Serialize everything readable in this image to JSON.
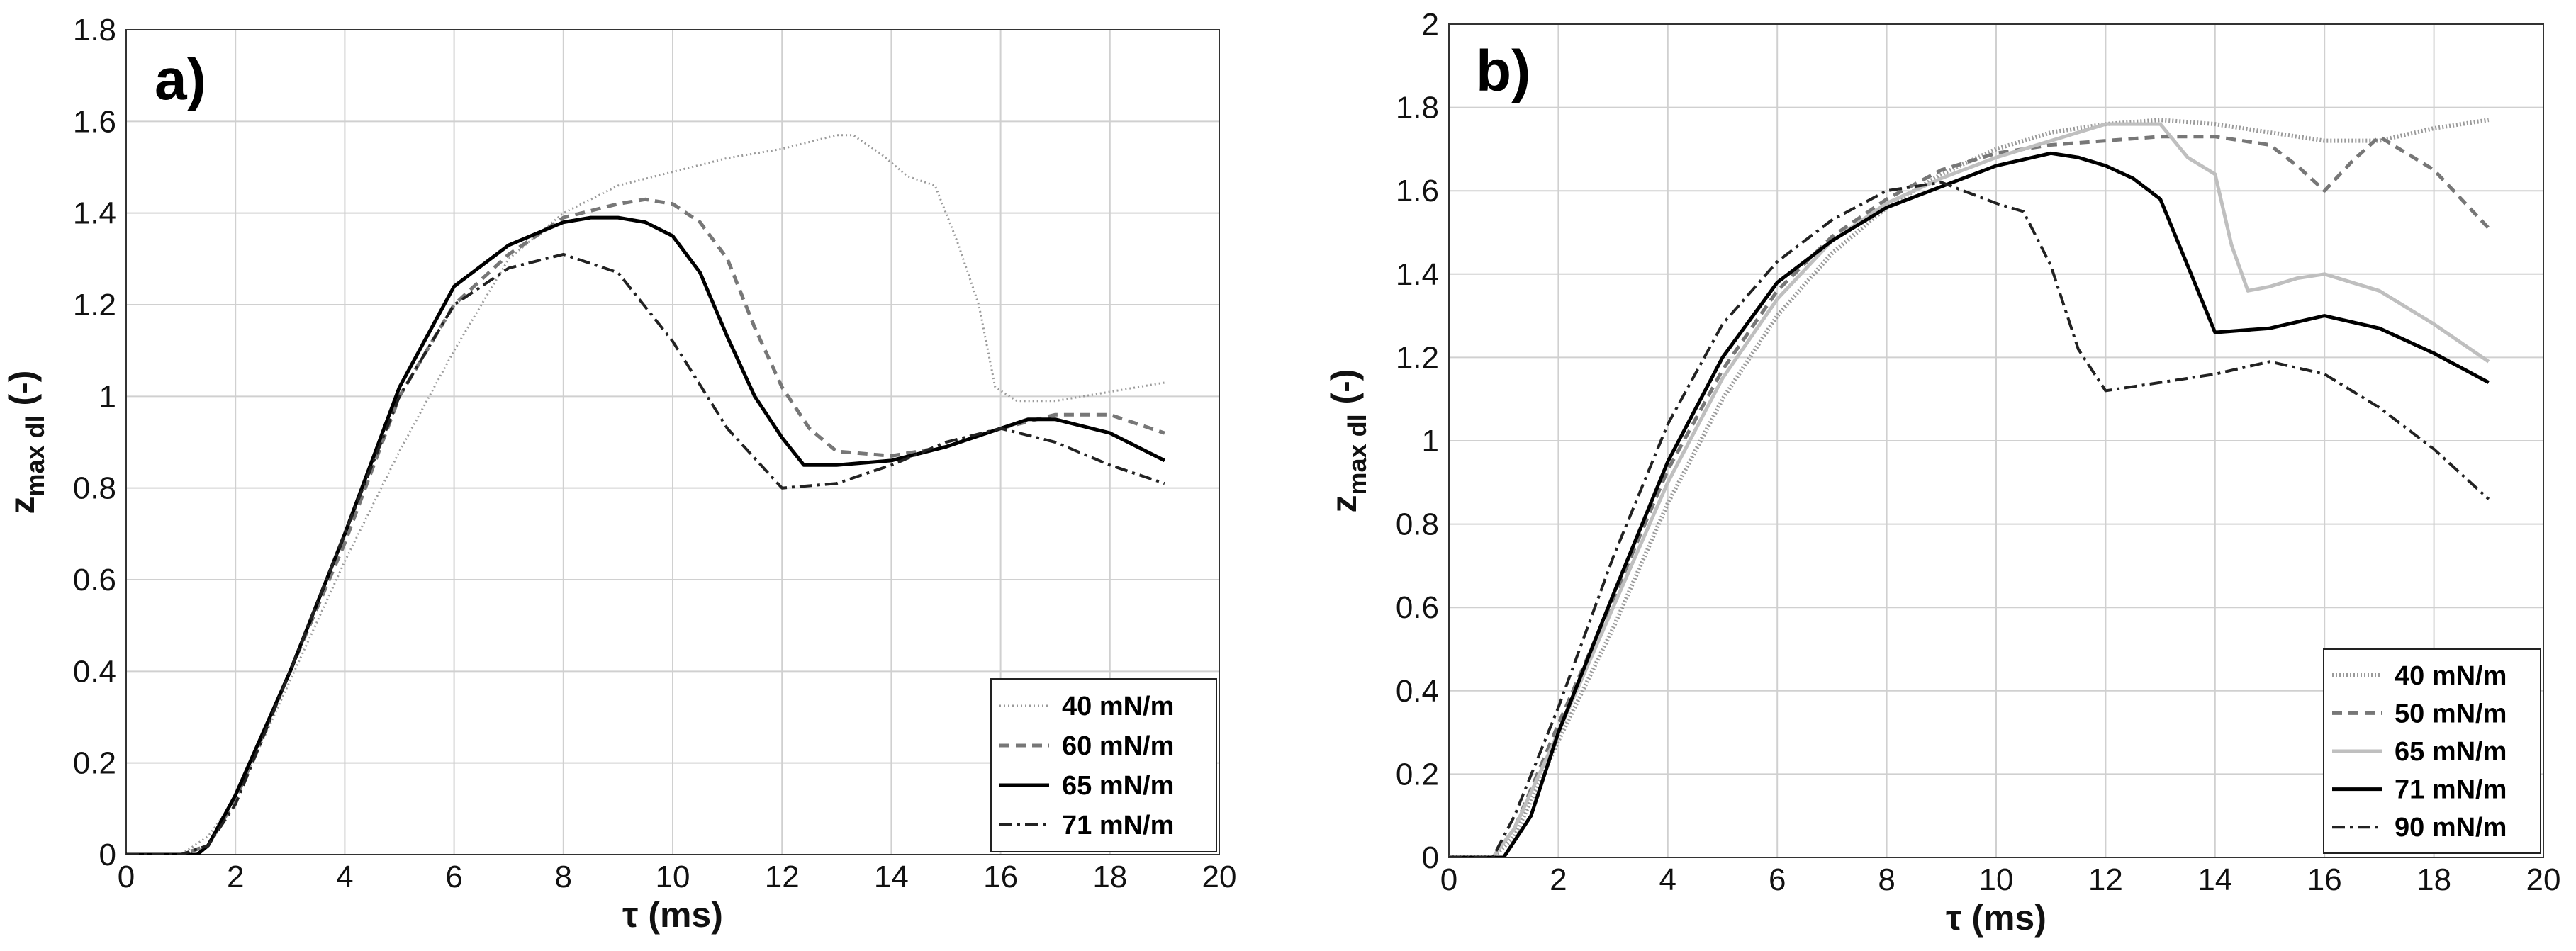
{
  "chart_data": [
    {
      "type": "line",
      "panel_label": "a)",
      "xlabel": "τ (ms)",
      "ylabel_main": "z",
      "ylabel_sub": "max dl",
      "ylabel_suffix": " (-)",
      "xlim": [
        0,
        20
      ],
      "ylim": [
        0,
        1.8
      ],
      "xticks": [
        0,
        2,
        4,
        6,
        8,
        10,
        12,
        14,
        16,
        18,
        20
      ],
      "xtick_labels": [
        "0",
        "2",
        "4",
        "6",
        "8",
        "10",
        "12",
        "14",
        "16",
        "18",
        "20"
      ],
      "yticks": [
        0,
        0.2,
        0.4,
        0.6,
        0.8,
        1.0,
        1.2,
        1.4,
        1.6,
        1.8
      ],
      "ytick_labels": [
        "0",
        "0.2",
        "0.4",
        "0.6",
        "0.8",
        "1",
        "1.2",
        "1.4",
        "1.6",
        "1.8"
      ],
      "grid": true,
      "legend_position": "bottom-right",
      "series": [
        {
          "name": "40 mN/m",
          "style": "dotted",
          "color": "#9a9a9a",
          "x": [
            0,
            0.5,
            1.0,
            1.5,
            2.0,
            3,
            4,
            5,
            6,
            7,
            8,
            9,
            10,
            11,
            12,
            13,
            13.3,
            13.8,
            14.3,
            14.8,
            15.2,
            15.6,
            15.9,
            16.3,
            17,
            18,
            19
          ],
          "y": [
            0,
            0,
            0,
            0.04,
            0.12,
            0.38,
            0.64,
            0.88,
            1.1,
            1.3,
            1.4,
            1.46,
            1.49,
            1.52,
            1.54,
            1.57,
            1.57,
            1.53,
            1.48,
            1.46,
            1.34,
            1.2,
            1.02,
            0.99,
            0.99,
            1.01,
            1.03
          ]
        },
        {
          "name": "60 mN/m",
          "style": "dashed",
          "color": "#777777",
          "x": [
            0,
            1.0,
            1.5,
            2.0,
            3,
            4,
            5,
            6,
            7,
            8,
            9,
            9.5,
            10,
            10.5,
            11,
            11.5,
            12,
            12.5,
            13,
            14,
            15,
            16,
            17,
            18,
            19
          ],
          "y": [
            0,
            0,
            0.02,
            0.12,
            0.4,
            0.68,
            1.0,
            1.2,
            1.31,
            1.39,
            1.42,
            1.43,
            1.42,
            1.38,
            1.3,
            1.15,
            1.02,
            0.93,
            0.88,
            0.87,
            0.89,
            0.93,
            0.96,
            0.96,
            0.92
          ]
        },
        {
          "name": "65 mN/m",
          "style": "solid",
          "color": "#000000",
          "x": [
            0,
            1.0,
            1.3,
            1.5,
            2.0,
            3,
            4,
            5,
            6,
            7,
            8,
            8.5,
            9,
            9.5,
            10,
            10.5,
            11,
            11.5,
            12,
            12.4,
            13,
            14,
            15,
            16,
            16.5,
            17,
            18,
            19
          ],
          "y": [
            0,
            0,
            0,
            0.02,
            0.13,
            0.4,
            0.7,
            1.02,
            1.24,
            1.33,
            1.38,
            1.39,
            1.39,
            1.38,
            1.35,
            1.27,
            1.13,
            1.0,
            0.91,
            0.85,
            0.85,
            0.86,
            0.89,
            0.93,
            0.95,
            0.95,
            0.92,
            0.86
          ]
        },
        {
          "name": "71 mN/m",
          "style": "dashdot",
          "color": "#222222",
          "x": [
            0,
            1.0,
            1.5,
            2.0,
            3,
            4,
            5,
            6,
            7,
            8,
            9,
            10,
            11,
            12,
            13,
            14,
            15,
            16,
            17,
            18,
            19
          ],
          "y": [
            0,
            0,
            0.02,
            0.11,
            0.4,
            0.7,
            1.0,
            1.2,
            1.28,
            1.31,
            1.27,
            1.12,
            0.93,
            0.8,
            0.81,
            0.85,
            0.9,
            0.93,
            0.9,
            0.85,
            0.81
          ]
        }
      ]
    },
    {
      "type": "line",
      "panel_label": "b)",
      "xlabel": "τ (ms)",
      "ylabel_main": "z",
      "ylabel_sub": "max dl",
      "ylabel_suffix": " (-)",
      "xlim": [
        0,
        20
      ],
      "ylim": [
        0,
        2.0
      ],
      "xticks": [
        0,
        2,
        4,
        6,
        8,
        10,
        12,
        14,
        16,
        18,
        20
      ],
      "xtick_labels": [
        "0",
        "2",
        "4",
        "6",
        "8",
        "10",
        "12",
        "14",
        "16",
        "18",
        "20"
      ],
      "yticks": [
        0,
        0.2,
        0.4,
        0.6,
        0.8,
        1.0,
        1.2,
        1.4,
        1.6,
        1.8,
        2.0
      ],
      "ytick_labels": [
        "0",
        "0.2",
        "0.4",
        "0.6",
        "0.8",
        "1",
        "1.2",
        "1.4",
        "1.6",
        "1.8",
        "2"
      ],
      "grid": true,
      "legend_position": "bottom-right",
      "series": [
        {
          "name": "40 mN/m",
          "style": "dotted-thick",
          "color": "#9a9a9a",
          "x": [
            0,
            0.8,
            1.2,
            2,
            3,
            4,
            5,
            6,
            7,
            8,
            9,
            10,
            11,
            12,
            13,
            14,
            15,
            16,
            17,
            18,
            19
          ],
          "y": [
            0,
            0,
            0.05,
            0.28,
            0.55,
            0.85,
            1.1,
            1.3,
            1.45,
            1.56,
            1.64,
            1.7,
            1.74,
            1.76,
            1.77,
            1.76,
            1.74,
            1.72,
            1.72,
            1.75,
            1.77
          ]
        },
        {
          "name": "50 mN/m",
          "style": "dashed",
          "color": "#777777",
          "x": [
            0,
            0.8,
            1.2,
            2,
            3,
            4,
            5,
            6,
            7,
            8,
            9,
            10,
            11,
            12,
            13,
            14,
            15,
            15.5,
            16,
            16.5,
            17,
            18,
            19
          ],
          "y": [
            0,
            0,
            0.07,
            0.32,
            0.62,
            0.93,
            1.17,
            1.36,
            1.49,
            1.58,
            1.65,
            1.69,
            1.71,
            1.72,
            1.73,
            1.73,
            1.71,
            1.66,
            1.6,
            1.67,
            1.73,
            1.65,
            1.51
          ]
        },
        {
          "name": "65 mN/m",
          "style": "solid",
          "color": "#bfbfbf",
          "x": [
            0,
            0.8,
            1.2,
            2,
            3,
            4,
            5,
            6,
            7,
            8,
            9,
            10,
            11,
            12,
            13,
            13.5,
            14,
            14.3,
            14.6,
            15,
            15.5,
            16,
            17,
            18,
            19
          ],
          "y": [
            0,
            0,
            0.07,
            0.3,
            0.6,
            0.9,
            1.15,
            1.34,
            1.48,
            1.57,
            1.63,
            1.68,
            1.72,
            1.76,
            1.76,
            1.68,
            1.64,
            1.47,
            1.36,
            1.37,
            1.39,
            1.4,
            1.36,
            1.28,
            1.19
          ]
        },
        {
          "name": "71 mN/m",
          "style": "solid",
          "color": "#000000",
          "x": [
            0,
            1.0,
            1.5,
            2,
            3,
            4,
            5,
            6,
            7,
            8,
            9,
            10,
            11,
            11.5,
            12,
            12.5,
            13,
            13.5,
            14,
            15,
            16,
            17,
            18,
            19
          ],
          "y": [
            0,
            0,
            0.1,
            0.3,
            0.63,
            0.95,
            1.2,
            1.38,
            1.48,
            1.56,
            1.61,
            1.66,
            1.69,
            1.68,
            1.66,
            1.63,
            1.58,
            1.42,
            1.26,
            1.27,
            1.3,
            1.27,
            1.21,
            1.14
          ]
        },
        {
          "name": "90 mN/m",
          "style": "dashdot",
          "color": "#222222",
          "x": [
            0,
            0.8,
            1.2,
            2,
            3,
            4,
            5,
            6,
            7,
            8,
            9,
            10,
            10.5,
            11,
            11.5,
            12,
            13,
            14,
            15,
            16,
            17,
            18,
            19
          ],
          "y": [
            0,
            0,
            0.1,
            0.36,
            0.72,
            1.04,
            1.28,
            1.43,
            1.53,
            1.6,
            1.62,
            1.57,
            1.55,
            1.42,
            1.22,
            1.12,
            1.14,
            1.16,
            1.19,
            1.16,
            1.08,
            0.98,
            0.86
          ]
        }
      ]
    }
  ]
}
